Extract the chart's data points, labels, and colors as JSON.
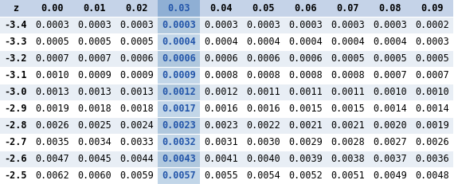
{
  "col_headers": [
    "z",
    "0.00",
    "0.01",
    "0.02",
    "0.03",
    "0.04",
    "0.05",
    "0.06",
    "0.07",
    "0.08",
    "0.09"
  ],
  "rows": [
    [
      "-3.4",
      "0.0003",
      "0.0003",
      "0.0003",
      "0.0003",
      "0.0003",
      "0.0003",
      "0.0003",
      "0.0003",
      "0.0003",
      "0.0002"
    ],
    [
      "-3.3",
      "0.0005",
      "0.0005",
      "0.0005",
      "0.0004",
      "0.0004",
      "0.0004",
      "0.0004",
      "0.0004",
      "0.0004",
      "0.0003"
    ],
    [
      "-3.2",
      "0.0007",
      "0.0007",
      "0.0006",
      "0.0006",
      "0.0006",
      "0.0006",
      "0.0006",
      "0.0005",
      "0.0005",
      "0.0005"
    ],
    [
      "-3.1",
      "0.0010",
      "0.0009",
      "0.0009",
      "0.0009",
      "0.0008",
      "0.0008",
      "0.0008",
      "0.0008",
      "0.0007",
      "0.0007"
    ],
    [
      "-3.0",
      "0.0013",
      "0.0013",
      "0.0013",
      "0.0012",
      "0.0012",
      "0.0011",
      "0.0011",
      "0.0011",
      "0.0010",
      "0.0010"
    ],
    [
      "-2.9",
      "0.0019",
      "0.0018",
      "0.0018",
      "0.0017",
      "0.0016",
      "0.0016",
      "0.0015",
      "0.0015",
      "0.0014",
      "0.0014"
    ],
    [
      "-2.8",
      "0.0026",
      "0.0025",
      "0.0024",
      "0.0023",
      "0.0023",
      "0.0022",
      "0.0021",
      "0.0021",
      "0.0020",
      "0.0019"
    ],
    [
      "-2.7",
      "0.0035",
      "0.0034",
      "0.0033",
      "0.0032",
      "0.0031",
      "0.0030",
      "0.0029",
      "0.0028",
      "0.0027",
      "0.0026"
    ],
    [
      "-2.6",
      "0.0047",
      "0.0045",
      "0.0044",
      "0.0043",
      "0.0041",
      "0.0040",
      "0.0039",
      "0.0038",
      "0.0037",
      "0.0036"
    ],
    [
      "-2.5",
      "0.0062",
      "0.0060",
      "0.0059",
      "0.0057",
      "0.0055",
      "0.0054",
      "0.0052",
      "0.0051",
      "0.0049",
      "0.0048"
    ]
  ],
  "highlight_col": 4,
  "header_bg": "#c5d3e8",
  "header_highlight_bg": "#8fafd4",
  "row_bg_even": "#e8eef5",
  "row_bg_odd": "#ffffff",
  "row_highlight_even": "#b0c8de",
  "row_highlight_odd": "#c2d6e8",
  "text_color_normal": "#000000",
  "text_color_highlight": "#2255aa",
  "font_size": 8.5,
  "figsize": [
    5.7,
    2.31
  ],
  "dpi": 100
}
